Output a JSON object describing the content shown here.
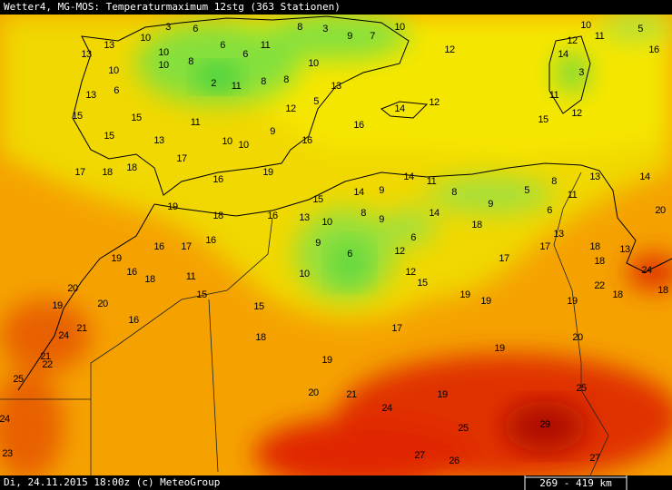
{
  "header": {
    "title": "Wetter4, MG-MOS: Temperaturmaximum 12stg (363 Stationen)"
  },
  "footer": {
    "timestamp": "Di, 24.11.2015 18:00z (c) MeteoGroup",
    "scale": "269 - 419 km"
  },
  "stations": [
    3,
    6,
    10,
    10,
    8,
    6,
    6,
    11,
    8,
    3,
    9,
    7,
    10,
    12,
    13,
    13,
    10,
    6,
    10,
    2,
    11,
    8,
    8,
    10,
    13,
    12,
    5,
    13,
    15,
    15,
    15,
    13,
    11,
    10,
    10,
    9,
    16,
    16,
    14,
    12,
    10,
    12,
    11,
    5,
    16,
    14,
    3,
    11,
    15,
    12,
    17,
    18,
    18,
    17,
    16,
    19,
    15,
    14,
    9,
    14,
    11,
    8,
    9,
    5,
    6,
    8,
    11,
    13,
    14,
    19,
    18,
    16,
    13,
    10,
    8,
    9,
    6,
    12,
    14,
    6,
    9,
    10,
    12,
    15,
    18,
    17,
    17,
    13,
    18,
    13,
    18,
    20,
    24,
    22,
    18,
    18,
    16,
    17,
    16,
    19,
    16,
    18,
    11,
    15,
    15,
    20,
    20,
    16,
    19,
    24,
    21,
    21,
    22,
    25,
    18,
    19,
    17,
    19,
    19,
    19,
    19,
    20,
    20,
    21,
    24,
    19,
    25,
    25,
    29,
    27,
    26,
    27,
    24,
    23
  ]
}
